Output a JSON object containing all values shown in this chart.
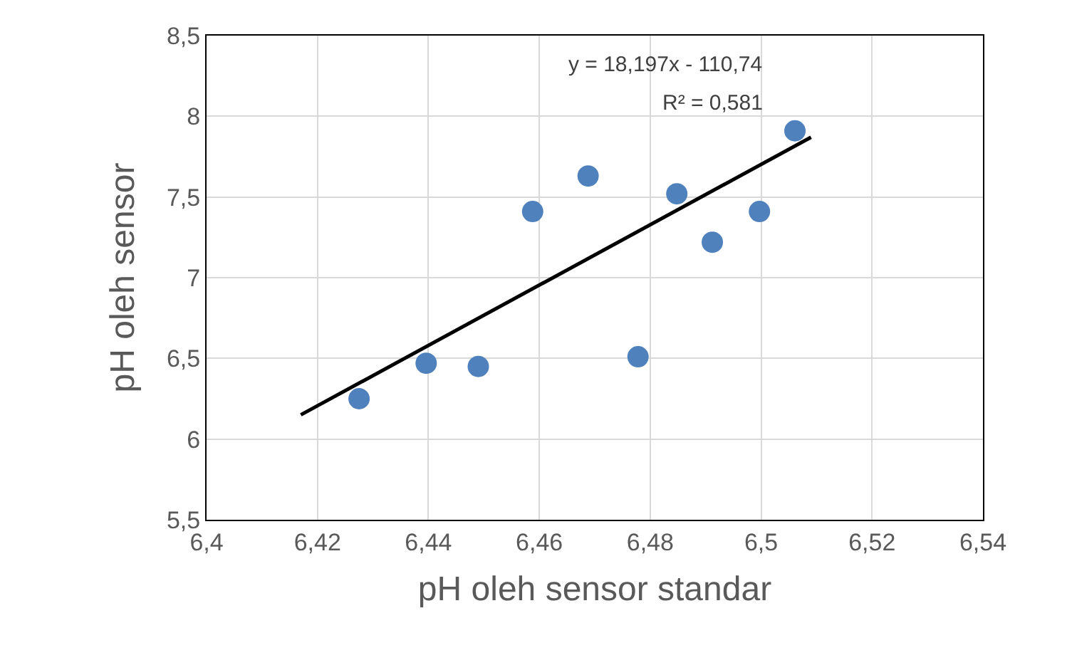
{
  "chart_data": {
    "type": "scatter",
    "xlabel": "pH oleh sensor standar",
    "ylabel": "pH oleh sensor",
    "x": [
      6.4275,
      6.4396,
      6.449,
      6.4588,
      6.4688,
      6.4778,
      6.4848,
      6.4912,
      6.4997,
      6.5061
    ],
    "series": [
      {
        "color": "#4f81bd",
        "values": [
          6.25,
          6.47,
          6.45,
          7.41,
          7.63,
          6.51,
          7.52,
          7.22,
          7.41,
          7.91
        ]
      },
      {
        "type": "line",
        "marker": "none",
        "color": "#000000",
        "x": [
          6.417,
          6.509
        ],
        "values": [
          6.15,
          7.87
        ]
      }
    ],
    "xlim": [
      6.4,
      6.54
    ],
    "ylim": [
      5.5,
      8.5
    ],
    "xticks": [
      {
        "value": 6.4,
        "label": "6,4"
      },
      {
        "value": 6.42,
        "label": "6,42"
      },
      {
        "value": 6.44,
        "label": "6,44"
      },
      {
        "value": 6.46,
        "label": "6,46"
      },
      {
        "value": 6.48,
        "label": "6,48"
      },
      {
        "value": 6.5,
        "label": "6,5"
      },
      {
        "value": 6.52,
        "label": "6,52"
      },
      {
        "value": 6.54,
        "label": "6,54"
      }
    ],
    "yticks": [
      {
        "value": 5.5,
        "label": "5,5"
      },
      {
        "value": 6,
        "label": "6"
      },
      {
        "value": 6.5,
        "label": "6,5"
      },
      {
        "value": 7,
        "label": "7"
      },
      {
        "value": 7.5,
        "label": "7,5"
      },
      {
        "value": 8,
        "label": "8"
      },
      {
        "value": 8.5,
        "label": "8,5"
      }
    ],
    "annotations": [
      "y = 18,197x - 110,74",
      "R² = 0,581"
    ],
    "grid": true,
    "marker": "circle"
  }
}
